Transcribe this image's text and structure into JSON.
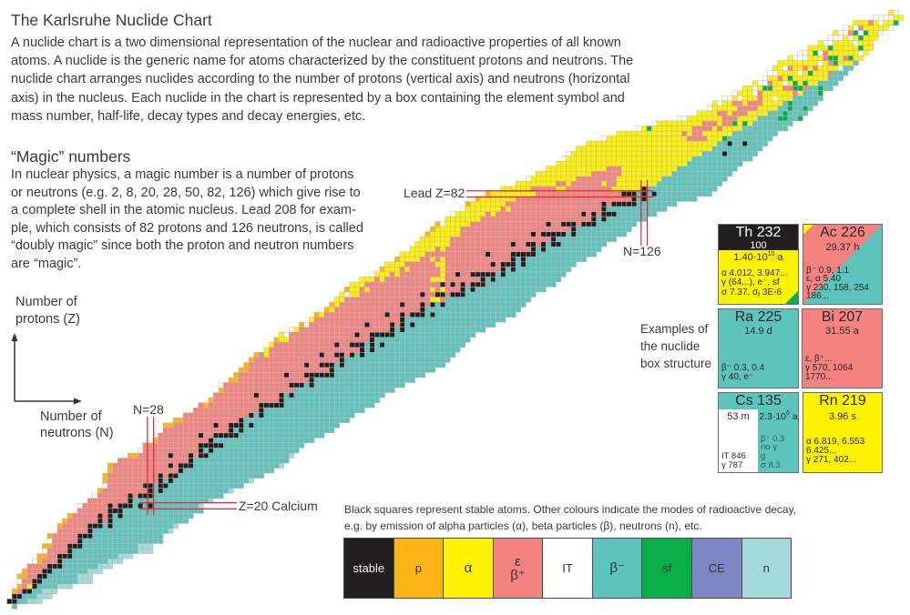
{
  "title": "The Karlsruhe Nuclide Chart",
  "intro_lines": [
    "A nuclide chart is a two dimensional representation of the nuclear and radioactive properties of all known",
    "atoms. A nuclide is the generic name for atoms characterized by the constituent protons and neutrons. The",
    "nuclide chart arranges nuclides according to the number of protons (vertical axis) and neutrons (horizontal",
    "axis) in the nucleus. Each nuclide in the chart is represented by a box containing the element symbol and",
    "mass number, half-life, decay types and decay energies, etc."
  ],
  "magic": {
    "heading": "“Magic” numbers",
    "lines": [
      "In nuclear physics, a magic number is a number of protons",
      "or neutrons (e.g. 2, 8, 20, 28, 50, 82, 126) which give rise to",
      "a complete shell in the atomic nucleus. Lead 208 for exam-",
      "ple, which consists of 82 protons and 126 neutrons, is called",
      "“doubly magic” since both the proton and neutron numbers",
      "are “magic”."
    ]
  },
  "axes": {
    "protons_label": [
      "Number of",
      "protons (Z)"
    ],
    "neutrons_label": [
      "Number of",
      "neutrons (N)"
    ]
  },
  "markers": {
    "lead": {
      "label": "Lead Z=82",
      "z": 82
    },
    "n126": {
      "label": "N=126",
      "n": 126
    },
    "n28": {
      "label": "N=28",
      "n": 28
    },
    "calcium": {
      "label": "Z=20 Calcium",
      "z": 20
    },
    "color": "#e3262d"
  },
  "examples": {
    "caption": [
      "Examples of",
      "the nuclide",
      "box structure"
    ],
    "boxes": [
      {
        "name": "Th 232",
        "abundance": "100",
        "halflife": {
          "base": "1.40·10",
          "exp": "10",
          "unit": "a"
        },
        "lines": [
          "α 4.012, 3.947...",
          "γ (64...), e⁻, sf"
        ],
        "sigma_line": {
          "a": "σ 7.37, σ",
          "sub": "f",
          "b": "3E-6"
        }
      },
      {
        "name": "Ac 226",
        "halflife": "29.37 h",
        "lines": [
          "β⁻ 0.9, 1.1",
          "ε, α 5.40",
          "γ 230, 158, 254",
          "186..."
        ]
      },
      {
        "name": "Ra 225",
        "halflife": "14.9 d",
        "lines": [
          "β⁻ 0.3, 0.4",
          "γ 40, e⁻"
        ]
      },
      {
        "name": "Bi 207",
        "halflife": "31.55 a",
        "lines": [
          "ε, β⁺...",
          "γ 570, 1064",
          "1770..."
        ]
      },
      {
        "name": "Cs 135",
        "isomer": {
          "halflife": "53 m",
          "lines": [
            "IT 846",
            "γ 787"
          ]
        },
        "halflife": {
          "base": "2.3·10",
          "exp": "6",
          "unit": "a"
        },
        "lines": [
          "β⁻ 0.3",
          "no γ",
          "g",
          "σ 8.3"
        ]
      },
      {
        "name": "Rn 219",
        "halflife": "3.96 s",
        "lines": [
          "α 6.819, 6.553",
          "6.425...",
          "γ 271, 402..."
        ]
      }
    ]
  },
  "legend": {
    "caption_lines": [
      "Black squares represent stable atoms. Other colours indicate the modes of radioactive decay,",
      "e.g. by emission of alpha particles (α), beta particles (β), neutrons (n), etc."
    ],
    "items": [
      {
        "key": "stable",
        "label": "stable",
        "color": "#231f20"
      },
      {
        "key": "p",
        "label": "p",
        "color": "#fbb415"
      },
      {
        "key": "alpha",
        "label": "α",
        "color": "#fff200"
      },
      {
        "key": "ec",
        "label": "ε",
        "label2": "β⁺",
        "color": "#f4827f"
      },
      {
        "key": "it",
        "label": "IT",
        "color": "#ffffff"
      },
      {
        "key": "bminus",
        "label": "β⁻",
        "color": "#5cc4bd"
      },
      {
        "key": "sf",
        "label": "sf",
        "color": "#0aae4b"
      },
      {
        "key": "ce",
        "label": "CE",
        "color": "#7b86c2"
      },
      {
        "key": "n",
        "label": "n",
        "color": "#a4dadb"
      }
    ]
  },
  "nuclide_ranges": [
    [
      0,
      1,
      1
    ],
    [
      1,
      0,
      6
    ],
    [
      2,
      1,
      8
    ],
    [
      3,
      1,
      9
    ],
    [
      4,
      2,
      12
    ],
    [
      5,
      2,
      16
    ],
    [
      6,
      2,
      16
    ],
    [
      7,
      3,
      18
    ],
    [
      8,
      4,
      20
    ],
    [
      9,
      5,
      22
    ],
    [
      10,
      6,
      24
    ],
    [
      11,
      7,
      28
    ],
    [
      12,
      7,
      28
    ],
    [
      13,
      8,
      30
    ],
    [
      14,
      8,
      30
    ],
    [
      15,
      10,
      32
    ],
    [
      16,
      10,
      33
    ],
    [
      17,
      11,
      35
    ],
    [
      18,
      12,
      36
    ],
    [
      19,
      14,
      38
    ],
    [
      20,
      14,
      38
    ],
    [
      22,
      17,
      42
    ],
    [
      24,
      19,
      46
    ],
    [
      26,
      19,
      50
    ],
    [
      28,
      20,
      54
    ],
    [
      30,
      24,
      56
    ],
    [
      32,
      27,
      58
    ],
    [
      34,
      30,
      62
    ],
    [
      36,
      31,
      65
    ],
    [
      38,
      35,
      68
    ],
    [
      40,
      38,
      72
    ],
    [
      42,
      41,
      74
    ],
    [
      44,
      42,
      78
    ],
    [
      46,
      45,
      82
    ],
    [
      48,
      47,
      86
    ],
    [
      50,
      49,
      88
    ],
    [
      52,
      52,
      90
    ],
    [
      54,
      54,
      92
    ],
    [
      56,
      58,
      96
    ],
    [
      58,
      61,
      100
    ],
    [
      60,
      64,
      102
    ],
    [
      62,
      66,
      104
    ],
    [
      64,
      68,
      108
    ],
    [
      66,
      72,
      110
    ],
    [
      68,
      75,
      112
    ],
    [
      70,
      78,
      116
    ],
    [
      72,
      81,
      118
    ],
    [
      74,
      83,
      122
    ],
    [
      76,
      85,
      124
    ],
    [
      78,
      88,
      128
    ],
    [
      80,
      91,
      132
    ],
    [
      82,
      95,
      139
    ],
    [
      84,
      101,
      141
    ],
    [
      86,
      105,
      143
    ],
    [
      88,
      109,
      145
    ],
    [
      90,
      111,
      148
    ],
    [
      92,
      115,
      150
    ],
    [
      94,
      121,
      152
    ],
    [
      96,
      128,
      155
    ],
    [
      98,
      137,
      158
    ],
    [
      100,
      140,
      160
    ],
    [
      102,
      144,
      161
    ],
    [
      104,
      148,
      164
    ],
    [
      106,
      151,
      166
    ],
    [
      108,
      153,
      168
    ],
    [
      110,
      157,
      170
    ],
    [
      112,
      161,
      171
    ],
    [
      114,
      164,
      173
    ],
    [
      116,
      168,
      176
    ],
    [
      117,
      172,
      177
    ],
    [
      118,
      175,
      176
    ]
  ],
  "stable_nuclides": {
    "1": [
      0,
      1
    ],
    "2": [
      1,
      2
    ],
    "3": [
      3,
      4
    ],
    "4": [
      5
    ],
    "5": [
      5,
      6
    ],
    "6": [
      6,
      7
    ],
    "7": [
      7,
      8
    ],
    "8": [
      8,
      9,
      10
    ],
    "9": [
      10
    ],
    "10": [
      10,
      11,
      12
    ],
    "11": [
      12
    ],
    "12": [
      12,
      13,
      14
    ],
    "13": [
      14
    ],
    "14": [
      14,
      15,
      16
    ],
    "15": [
      16
    ],
    "16": [
      16,
      17,
      18,
      20
    ],
    "17": [
      18,
      20
    ],
    "18": [
      18,
      20,
      22
    ],
    "19": [
      20,
      21,
      22
    ],
    "20": [
      20,
      22,
      23,
      24,
      26,
      28
    ],
    "83": [
      126
    ],
    "90": [
      142
    ],
    "92": [
      143,
      146
    ]
  }
}
